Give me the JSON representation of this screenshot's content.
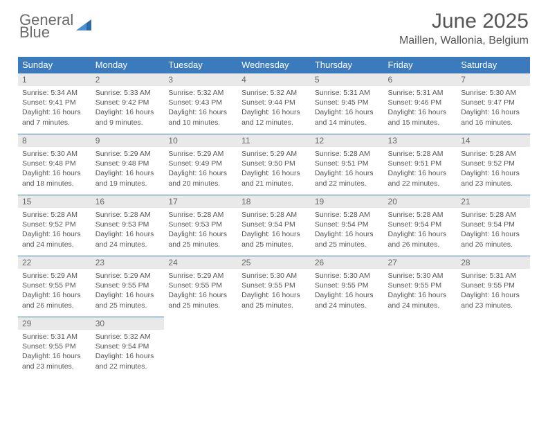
{
  "brand": {
    "line1": "General",
    "line2": "Blue"
  },
  "title": "June 2025",
  "subtitle": "Maillen, Wallonia, Belgium",
  "colors": {
    "header_bg": "#3a7abd",
    "header_text": "#ffffff",
    "daynum_bg": "#e9e9e9",
    "body_text": "#555555",
    "rule": "#3a7abd",
    "brand_gray": "#6a6a6a",
    "brand_blue": "#3a7abd"
  },
  "weekdays": [
    "Sunday",
    "Monday",
    "Tuesday",
    "Wednesday",
    "Thursday",
    "Friday",
    "Saturday"
  ],
  "weeks": [
    [
      {
        "n": "1",
        "sr": "5:34 AM",
        "ss": "9:41 PM",
        "dl": "16 hours and 7 minutes."
      },
      {
        "n": "2",
        "sr": "5:33 AM",
        "ss": "9:42 PM",
        "dl": "16 hours and 9 minutes."
      },
      {
        "n": "3",
        "sr": "5:32 AM",
        "ss": "9:43 PM",
        "dl": "16 hours and 10 minutes."
      },
      {
        "n": "4",
        "sr": "5:32 AM",
        "ss": "9:44 PM",
        "dl": "16 hours and 12 minutes."
      },
      {
        "n": "5",
        "sr": "5:31 AM",
        "ss": "9:45 PM",
        "dl": "16 hours and 14 minutes."
      },
      {
        "n": "6",
        "sr": "5:31 AM",
        "ss": "9:46 PM",
        "dl": "16 hours and 15 minutes."
      },
      {
        "n": "7",
        "sr": "5:30 AM",
        "ss": "9:47 PM",
        "dl": "16 hours and 16 minutes."
      }
    ],
    [
      {
        "n": "8",
        "sr": "5:30 AM",
        "ss": "9:48 PM",
        "dl": "16 hours and 18 minutes."
      },
      {
        "n": "9",
        "sr": "5:29 AM",
        "ss": "9:48 PM",
        "dl": "16 hours and 19 minutes."
      },
      {
        "n": "10",
        "sr": "5:29 AM",
        "ss": "9:49 PM",
        "dl": "16 hours and 20 minutes."
      },
      {
        "n": "11",
        "sr": "5:29 AM",
        "ss": "9:50 PM",
        "dl": "16 hours and 21 minutes."
      },
      {
        "n": "12",
        "sr": "5:28 AM",
        "ss": "9:51 PM",
        "dl": "16 hours and 22 minutes."
      },
      {
        "n": "13",
        "sr": "5:28 AM",
        "ss": "9:51 PM",
        "dl": "16 hours and 22 minutes."
      },
      {
        "n": "14",
        "sr": "5:28 AM",
        "ss": "9:52 PM",
        "dl": "16 hours and 23 minutes."
      }
    ],
    [
      {
        "n": "15",
        "sr": "5:28 AM",
        "ss": "9:52 PM",
        "dl": "16 hours and 24 minutes."
      },
      {
        "n": "16",
        "sr": "5:28 AM",
        "ss": "9:53 PM",
        "dl": "16 hours and 24 minutes."
      },
      {
        "n": "17",
        "sr": "5:28 AM",
        "ss": "9:53 PM",
        "dl": "16 hours and 25 minutes."
      },
      {
        "n": "18",
        "sr": "5:28 AM",
        "ss": "9:54 PM",
        "dl": "16 hours and 25 minutes."
      },
      {
        "n": "19",
        "sr": "5:28 AM",
        "ss": "9:54 PM",
        "dl": "16 hours and 25 minutes."
      },
      {
        "n": "20",
        "sr": "5:28 AM",
        "ss": "9:54 PM",
        "dl": "16 hours and 26 minutes."
      },
      {
        "n": "21",
        "sr": "5:28 AM",
        "ss": "9:54 PM",
        "dl": "16 hours and 26 minutes."
      }
    ],
    [
      {
        "n": "22",
        "sr": "5:29 AM",
        "ss": "9:55 PM",
        "dl": "16 hours and 26 minutes."
      },
      {
        "n": "23",
        "sr": "5:29 AM",
        "ss": "9:55 PM",
        "dl": "16 hours and 25 minutes."
      },
      {
        "n": "24",
        "sr": "5:29 AM",
        "ss": "9:55 PM",
        "dl": "16 hours and 25 minutes."
      },
      {
        "n": "25",
        "sr": "5:30 AM",
        "ss": "9:55 PM",
        "dl": "16 hours and 25 minutes."
      },
      {
        "n": "26",
        "sr": "5:30 AM",
        "ss": "9:55 PM",
        "dl": "16 hours and 24 minutes."
      },
      {
        "n": "27",
        "sr": "5:30 AM",
        "ss": "9:55 PM",
        "dl": "16 hours and 24 minutes."
      },
      {
        "n": "28",
        "sr": "5:31 AM",
        "ss": "9:55 PM",
        "dl": "16 hours and 23 minutes."
      }
    ],
    [
      {
        "n": "29",
        "sr": "5:31 AM",
        "ss": "9:55 PM",
        "dl": "16 hours and 23 minutes."
      },
      {
        "n": "30",
        "sr": "5:32 AM",
        "ss": "9:54 PM",
        "dl": "16 hours and 22 minutes."
      },
      null,
      null,
      null,
      null,
      null
    ]
  ],
  "labels": {
    "sunrise": "Sunrise:",
    "sunset": "Sunset:",
    "daylight": "Daylight:"
  }
}
